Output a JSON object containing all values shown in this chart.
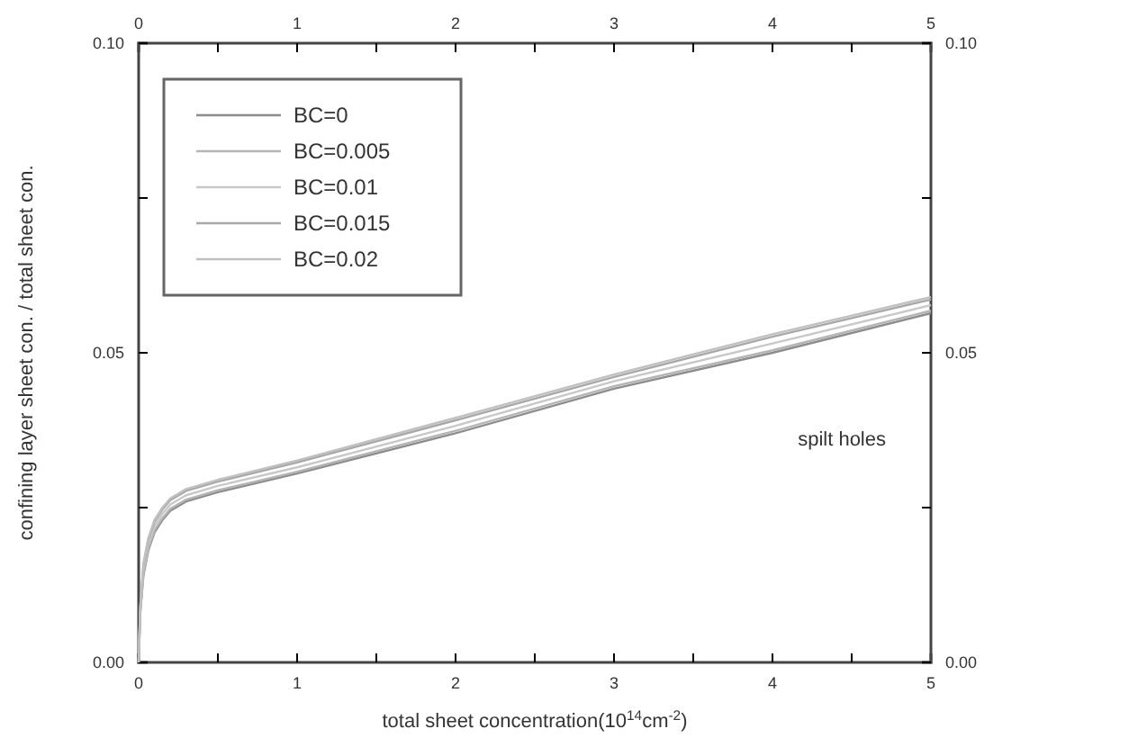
{
  "chart_data": {
    "type": "line",
    "xlabel": "total sheet concentration(10$^{14}$cm$^{-2}$)",
    "ylabel": "confining layer sheet con. / total sheet con.",
    "x": [
      0,
      0.01,
      0.03,
      0.06,
      0.1,
      0.15,
      0.2,
      0.3,
      0.5,
      1,
      2,
      3,
      4,
      5
    ],
    "series": [
      {
        "name": "BC=0",
        "color": "#8c8c8c",
        "values": [
          0,
          0.008,
          0.014,
          0.018,
          0.021,
          0.023,
          0.0245,
          0.026,
          0.0275,
          0.0305,
          0.037,
          0.0442,
          0.05,
          0.0564
        ]
      },
      {
        "name": "BC=0.005",
        "color": "#b4b4b4",
        "values": [
          0,
          0.008,
          0.0143,
          0.0183,
          0.0213,
          0.0233,
          0.0248,
          0.0263,
          0.0278,
          0.0308,
          0.0374,
          0.0446,
          0.0504,
          0.0568
        ]
      },
      {
        "name": "BC=0.01",
        "color": "#c8c8c8",
        "values": [
          0,
          0.0085,
          0.015,
          0.019,
          0.022,
          0.024,
          0.0255,
          0.027,
          0.0285,
          0.0315,
          0.0382,
          0.0454,
          0.0515,
          0.0577
        ]
      },
      {
        "name": "BC=0.015",
        "color": "#a8a8a8",
        "values": [
          0,
          0.009,
          0.0157,
          0.0197,
          0.0227,
          0.0247,
          0.0262,
          0.0277,
          0.0292,
          0.0323,
          0.0391,
          0.0461,
          0.0526,
          0.0586
        ]
      },
      {
        "name": "BC=0.02",
        "color": "#c0c0c0",
        "values": [
          0,
          0.009,
          0.016,
          0.02,
          0.023,
          0.025,
          0.0265,
          0.028,
          0.0295,
          0.0326,
          0.0395,
          0.0465,
          0.053,
          0.059
        ]
      }
    ],
    "xlim": [
      0,
      5
    ],
    "xticks": [
      0,
      {
        "value": 0.5,
        "label": null
      },
      1,
      {
        "value": 1.5,
        "label": null
      },
      2,
      {
        "value": 2.5,
        "label": null
      },
      3,
      {
        "value": 3.5,
        "label": null
      },
      4,
      {
        "value": 4.5,
        "label": null
      },
      5
    ],
    "x2lim": [
      0,
      5
    ],
    "x2ticks": [
      0,
      {
        "value": 0.5,
        "label": null
      },
      1,
      {
        "value": 1.5,
        "label": null
      },
      2,
      {
        "value": 2.5,
        "label": null
      },
      3,
      {
        "value": 3.5,
        "label": null
      },
      4,
      {
        "value": 4.5,
        "label": null
      },
      5
    ],
    "ylim": [
      0,
      0.1
    ],
    "yticks": [
      {
        "value": 0,
        "label": "0.00"
      },
      {
        "value": 0.025,
        "label": null
      },
      {
        "value": 0.05,
        "label": "0.05"
      },
      {
        "value": 0.075,
        "label": null
      },
      {
        "value": 0.1,
        "label": "0.10"
      }
    ],
    "y2lim": [
      0,
      0.1
    ],
    "y2ticks": [
      {
        "value": 0,
        "label": "0.00"
      },
      {
        "value": 0.025,
        "label": null
      },
      {
        "value": 0.05,
        "label": "0.05"
      },
      {
        "value": 0.075,
        "label": null
      },
      {
        "value": 0.1,
        "label": "0.10"
      }
    ],
    "annotations": [
      "spilt holes"
    ],
    "legend": "top left",
    "marker": "none",
    "line_style": "solid",
    "grid": false
  }
}
